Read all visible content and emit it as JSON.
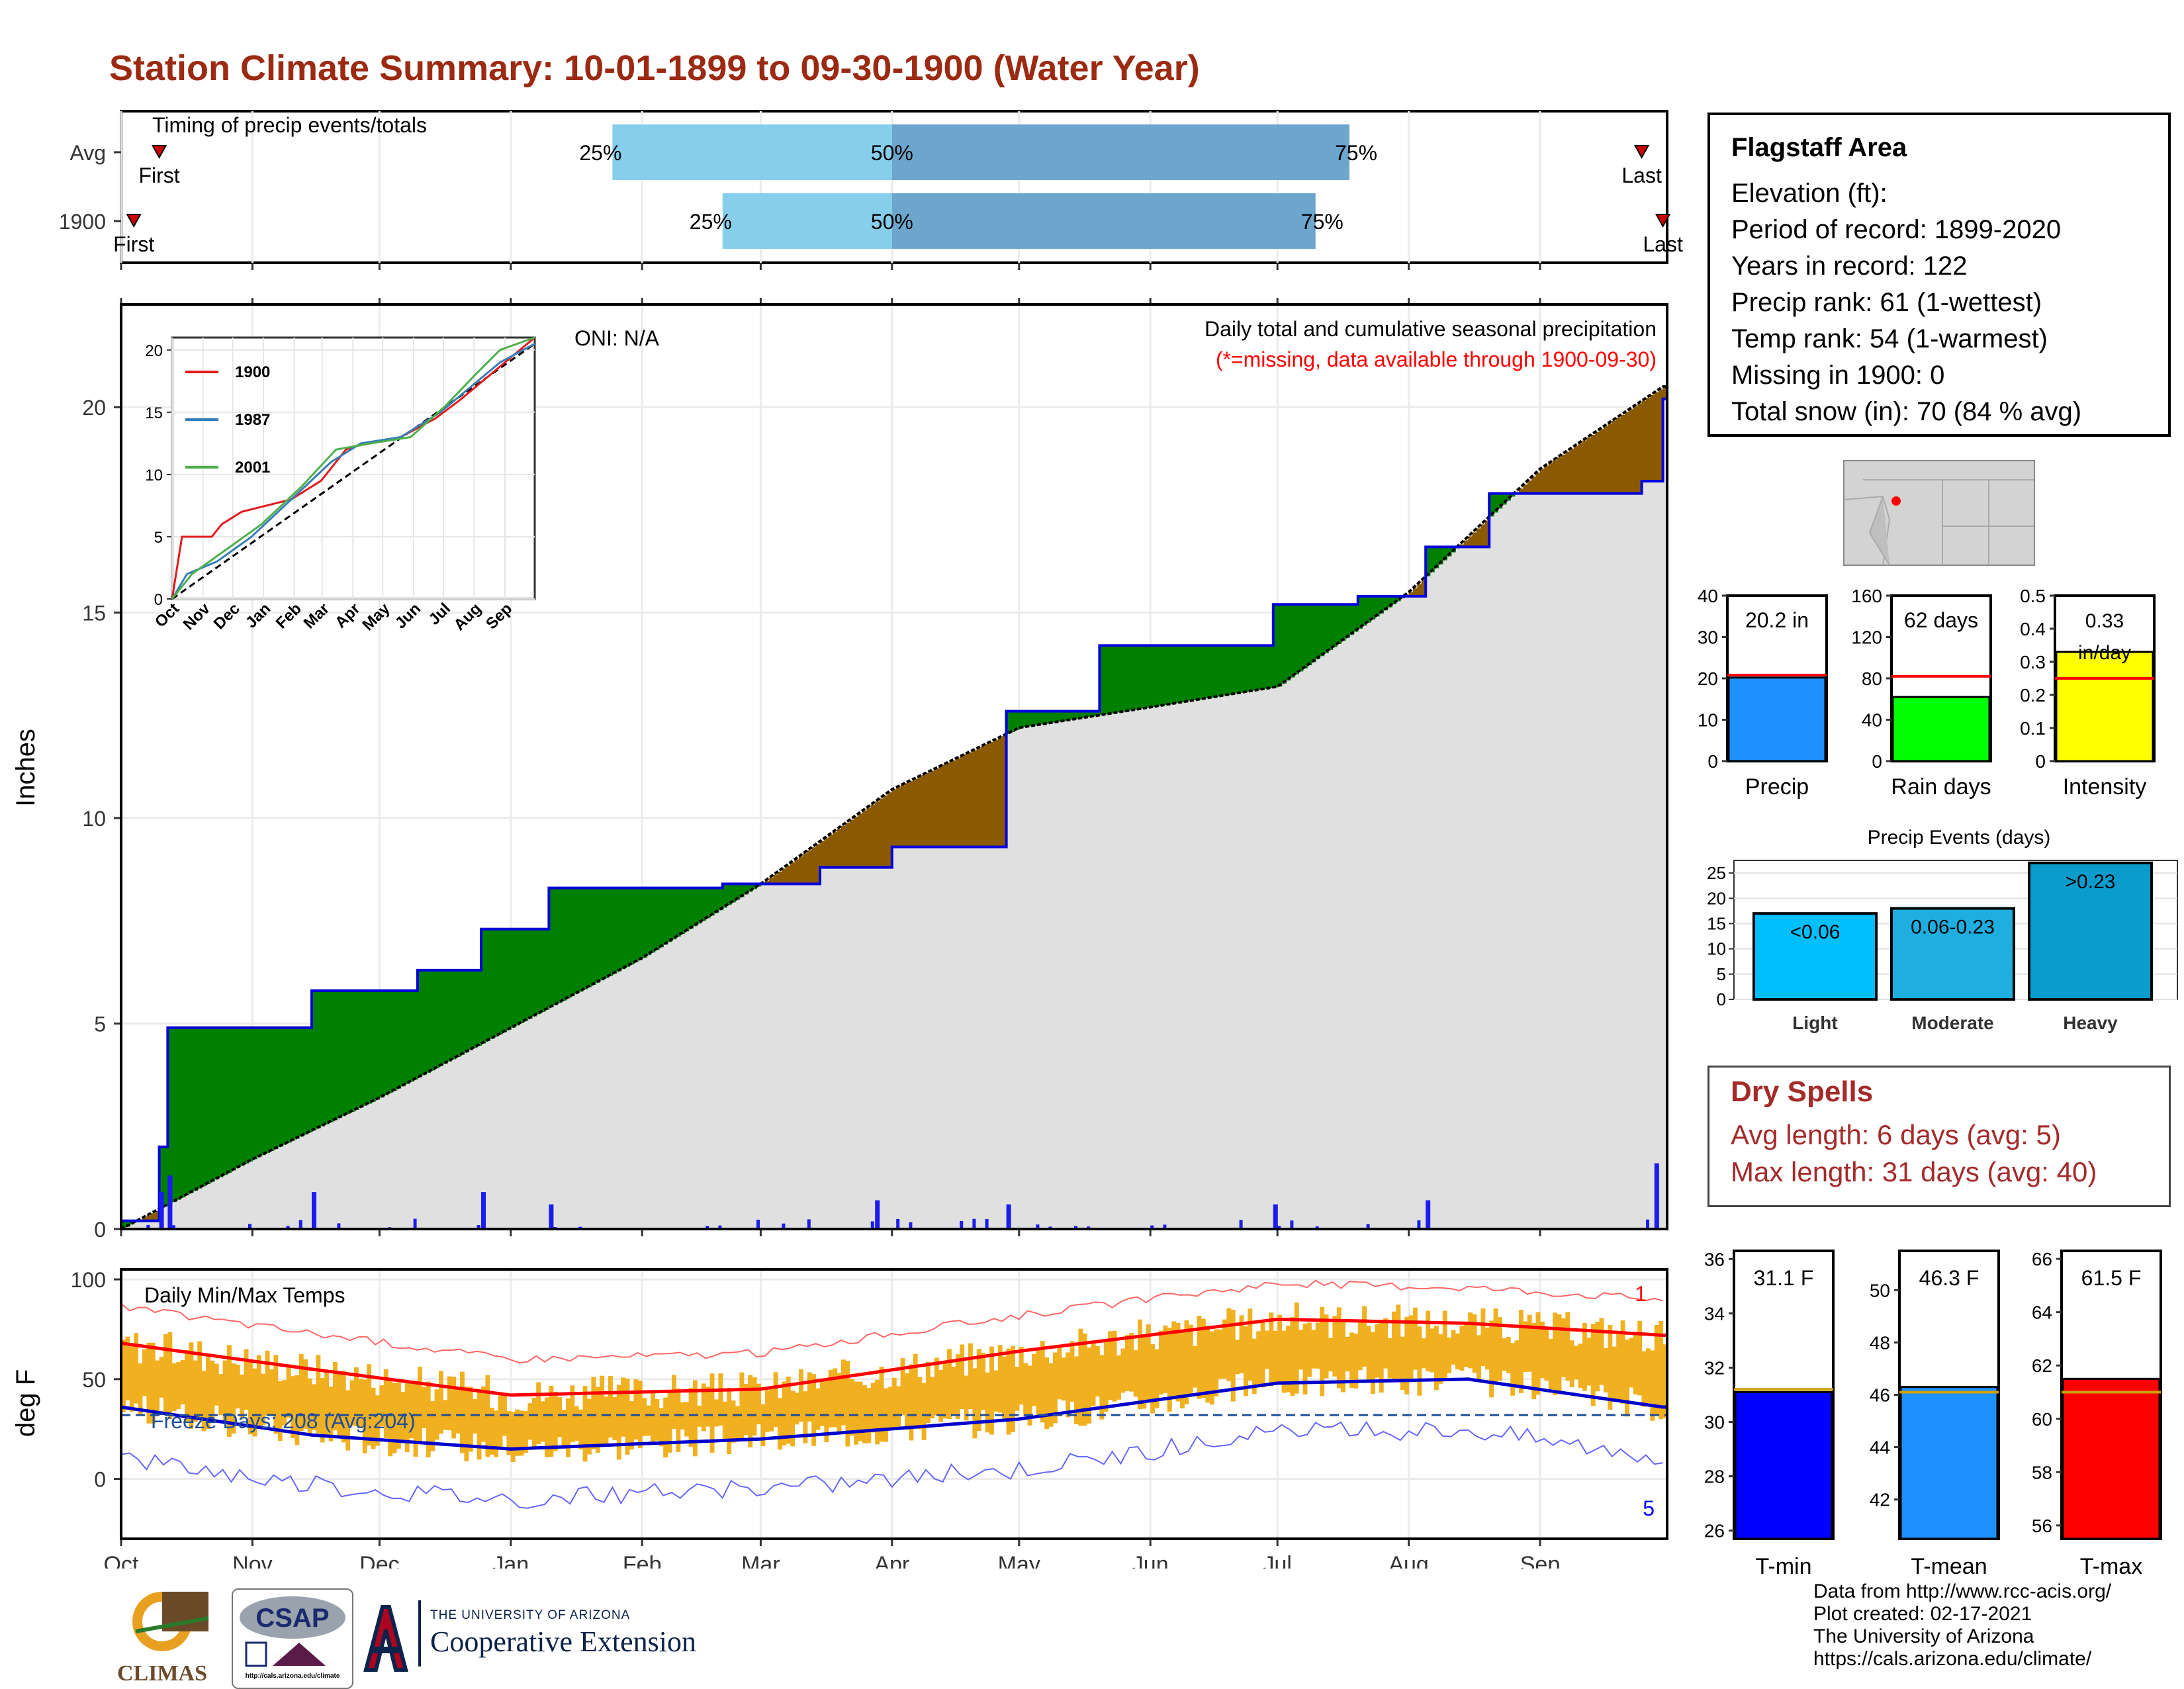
{
  "title": "Station Climate Summary: 10-01-1899 to 09-30-1900 (Water Year)",
  "colors": {
    "title": "#9c2a12",
    "green": "#008000",
    "brown": "#8b5a00",
    "grey_area": "#e0e0e0",
    "precip_bar": "#1c1cf0",
    "light_blue": "#87ceeb",
    "steel_blue": "#6ca6cd",
    "tmax_bar": "#f0b020",
    "tmin_line": "#0000cc",
    "tmax_line": "#ff0000"
  },
  "timing_panel": {
    "label": "Timing of precip events/totals",
    "rows": [
      {
        "name": "Avg",
        "first_label": "First",
        "last_label": "Last",
        "p25": "25%",
        "p50": "50%",
        "p75": "75%",
        "first_date": "1899-10-10",
        "q25_date": "1900-01-25",
        "q50_date": "1900-04-01",
        "q75_date": "1900-07-18",
        "last_date": "1900-09-25"
      },
      {
        "name": "1900",
        "first_label": "First",
        "last_label": "Last",
        "p25": "25%",
        "p50": "50%",
        "p75": "75%",
        "first_date": "1899-10-04",
        "q25_date": "1900-02-20",
        "q50_date": "1900-04-01",
        "q75_date": "1900-07-10",
        "last_date": "1900-09-30"
      }
    ]
  },
  "main_panel": {
    "ylabel": "Inches",
    "oni": "ONI: N/A",
    "caption": "Daily total and cumulative seasonal precipitation",
    "missing_note": "(*=missing, data available through 1900-09-30)",
    "yticks": [
      0,
      5,
      10,
      15,
      20
    ],
    "ylim": [
      0,
      22.5
    ],
    "months": [
      "Oct",
      "Nov",
      "Dec",
      "Jan",
      "Feb",
      "Mar",
      "Apr",
      "May",
      "Jun",
      "Jul",
      "Aug",
      "Sep"
    ]
  },
  "inset": {
    "legend": [
      "1900",
      "1987",
      "2001"
    ],
    "legend_colors": [
      "#e41a1c",
      "#377eb8",
      "#4daf4a"
    ],
    "yticks": [
      0,
      5,
      10,
      15,
      20
    ],
    "months": [
      "Oct",
      "Nov",
      "Dec",
      "Jan",
      "Feb",
      "Mar",
      "Apr",
      "May",
      "Jun",
      "Jul",
      "Aug",
      "Sep"
    ]
  },
  "temp_panel": {
    "ylabel": "deg F",
    "label": "Daily Min/Max Temps",
    "freeze": "Freeze Days: 208 (Avg:204)",
    "rank_top": "1",
    "rank_bottom": "5",
    "yticks": [
      0,
      50,
      100
    ],
    "ylim": [
      -30,
      105
    ]
  },
  "info_box": {
    "title": "Flagstaff Area",
    "lines": [
      "Elevation (ft):",
      "Period of record: 1899-2020",
      "Years in record: 122",
      "Precip rank: 61 (1-wettest)",
      "Temp rank: 54 (1-warmest)",
      "Missing in 1900: 0",
      "Total snow (in): 70 (84 % avg)"
    ]
  },
  "stat_bars": [
    {
      "label": "Precip",
      "value_text": "20.2 in",
      "value": 20.2,
      "avg": 20.8,
      "max": 40,
      "ticks": [
        0,
        10,
        20,
        30,
        40
      ],
      "color": "#1e90ff"
    },
    {
      "label": "Rain days",
      "value_text": "62 days",
      "value": 62,
      "avg": 82,
      "max": 160,
      "ticks": [
        0,
        40,
        80,
        120,
        160
      ],
      "color": "#00ff00"
    },
    {
      "label": "Intensity",
      "value_text": "0.33 in/day",
      "value": 0.33,
      "avg": 0.25,
      "max": 0.5,
      "ticks": [
        0.0,
        0.1,
        0.2,
        0.3,
        0.4,
        0.5
      ],
      "color": "#ffff00"
    }
  ],
  "events": {
    "title": "Precip Events (days)",
    "bars": [
      {
        "label": "Light",
        "text": "<0.06",
        "value": 17,
        "color": "#00bfff"
      },
      {
        "label": "Moderate",
        "text": "0.06-0.23",
        "value": 18,
        "color": "#1eaee0"
      },
      {
        "label": "Heavy",
        "text": ">0.23",
        "value": 27,
        "color": "#0a9ccc"
      }
    ],
    "yticks": [
      0,
      5,
      10,
      15,
      20,
      25
    ]
  },
  "dry_spells": {
    "title": "Dry Spells",
    "lines": [
      "Avg length: 6 days (avg: 5)",
      "Max length: 31 days (avg: 40)"
    ]
  },
  "temp_bars": [
    {
      "label": "T-min",
      "value_text": "31.1 F",
      "value": 31.1,
      "avg": 31.2,
      "min": 25.7,
      "max": 36.3,
      "ticks": [
        26,
        28,
        30,
        32,
        34,
        36
      ],
      "color": "#0000ff"
    },
    {
      "label": "T-mean",
      "value_text": "46.3 F",
      "value": 46.3,
      "avg": 46.1,
      "min": 40.5,
      "max": 51.5,
      "ticks": [
        42,
        44,
        46,
        48,
        50
      ],
      "color": "#1e90ff"
    },
    {
      "label": "T-max",
      "value_text": "61.5 F",
      "value": 61.5,
      "avg": 61.0,
      "min": 55.5,
      "max": 66.3,
      "ticks": [
        56,
        58,
        60,
        62,
        64,
        66
      ],
      "color": "#ff0000"
    }
  ],
  "credits": [
    "Data from http://www.rcc-acis.org/",
    "Plot created: 02-17-2021",
    "The University of Arizona",
    "https://cals.arizona.edu/climate/"
  ],
  "logos": {
    "climas": "CLIMAS",
    "csap": "CSAP",
    "csap_url": "http://cals.arizona.edu/climate",
    "ua_small": "THE UNIVERSITY OF ARIZONA",
    "ua_big": "Cooperative Extension"
  },
  "chart_data": [
    {
      "type": "area",
      "title": "Daily total and cumulative seasonal precipitation",
      "ylabel": "Inches",
      "ylim": [
        0,
        22.5
      ],
      "series": [
        {
          "name": "1900",
          "x": [
            "1899-10-01",
            "1899-10-10",
            "1899-10-12",
            "1899-11-15",
            "1899-12-10",
            "1899-12-25",
            "1900-01-10",
            "1900-02-20",
            "1900-03-15",
            "1900-04-01",
            "1900-04-28",
            "1900-05-20",
            "1900-06-30",
            "1900-07-20",
            "1900-08-05",
            "1900-08-20",
            "1900-09-25",
            "1900-09-30"
          ],
          "y": [
            0.2,
            2.0,
            4.9,
            5.8,
            6.3,
            7.3,
            8.3,
            8.4,
            8.8,
            9.3,
            12.6,
            14.2,
            15.2,
            15.4,
            16.6,
            17.9,
            18.2,
            20.2
          ]
        },
        {
          "name": "Average",
          "x": [
            "1899-10-01",
            "1899-11-01",
            "1899-12-01",
            "1900-01-01",
            "1900-02-01",
            "1900-03-01",
            "1900-04-01",
            "1900-05-01",
            "1900-06-01",
            "1900-07-01",
            "1900-08-01",
            "1900-09-01",
            "1900-09-30"
          ],
          "y": [
            0,
            1.7,
            3.2,
            4.9,
            6.6,
            8.4,
            10.7,
            12.2,
            12.7,
            13.2,
            15.5,
            18.5,
            20.5
          ]
        }
      ],
      "daily_precip_in": [
        {
          "date": "1899-10-10",
          "value": 0.9
        },
        {
          "date": "1899-10-12",
          "value": 1.3
        },
        {
          "date": "1899-11-15",
          "value": 0.9
        },
        {
          "date": "1899-12-25",
          "value": 0.9
        },
        {
          "date": "1900-01-10",
          "value": 0.6
        },
        {
          "date": "1900-03-28",
          "value": 0.7
        },
        {
          "date": "1900-04-28",
          "value": 0.6
        },
        {
          "date": "1900-06-30",
          "value": 0.6
        },
        {
          "date": "1900-08-05",
          "value": 0.7
        },
        {
          "date": "1900-09-28",
          "value": 1.6
        }
      ]
    },
    {
      "type": "line",
      "title": "Daily Min/Max Temps",
      "ylabel": "deg F",
      "ylim": [
        -30,
        105
      ],
      "series": [
        {
          "name": "Avg max",
          "x": [
            "1899-10-01",
            "1899-11-15",
            "1900-01-01",
            "1900-03-01",
            "1900-05-01",
            "1900-07-01",
            "1900-08-15",
            "1900-09-30"
          ],
          "y": [
            68,
            55,
            42,
            45,
            64,
            80,
            78,
            72
          ]
        },
        {
          "name": "Avg min",
          "x": [
            "1899-10-01",
            "1899-11-15",
            "1900-01-01",
            "1900-03-01",
            "1900-05-01",
            "1900-07-01",
            "1900-08-15",
            "1900-09-30"
          ],
          "y": [
            36,
            22,
            15,
            20,
            30,
            48,
            50,
            36
          ]
        }
      ]
    }
  ]
}
